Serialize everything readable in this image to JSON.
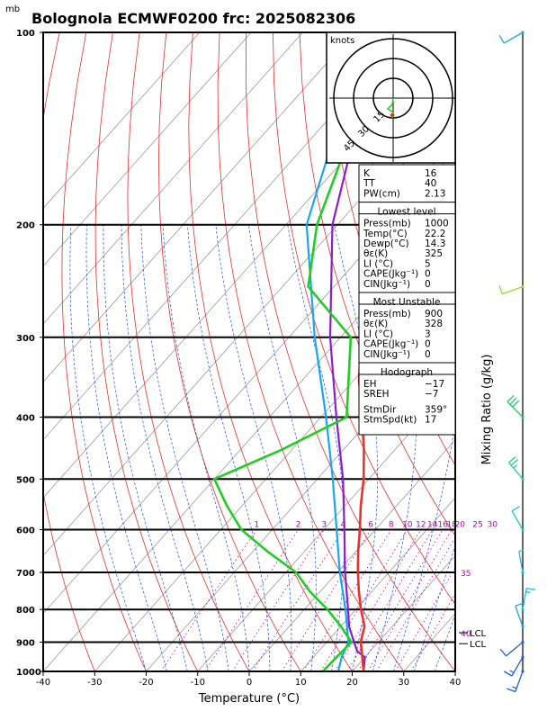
{
  "header": {
    "unit_top": "mb",
    "title": "Bolognola ECMWF0200  frc: 2025082306"
  },
  "hodograph": {
    "unit_label": "knots",
    "ring_labels": [
      "15",
      "30",
      "45"
    ]
  },
  "right_axis_label": "Mixing Ratio  (g/kg)",
  "lcl_labels": [
    "LCL",
    "LCL"
  ],
  "mixing_ratio_labels": [
    "1",
    "2",
    "3",
    "4",
    "6",
    "8",
    "10",
    "12",
    "14",
    "16",
    "18",
    "20",
    "25",
    "30",
    "35",
    "40"
  ],
  "indices": {
    "top": [
      {
        "label": "K",
        "value": "16"
      },
      {
        "label": "TT",
        "value": "40"
      },
      {
        "label": "PW(cm)",
        "value": "2.13"
      }
    ],
    "lowest": {
      "title": "Lowest level",
      "rows": [
        {
          "label": "Press(mb)",
          "value": "1000"
        },
        {
          "label": "Temp(°C)",
          "value": "22.2"
        },
        {
          "label": "Dewp(°C)",
          "value": "14.3"
        },
        {
          "label": "θε(K)",
          "value": "325"
        },
        {
          "label": "LI (°C)",
          "value": "5"
        },
        {
          "label": "CAPE(Jkg⁻¹)",
          "value": "0"
        },
        {
          "label": "CIN(Jkg⁻¹)",
          "value": "0"
        }
      ]
    },
    "most_unstable": {
      "title": "Most Unstable",
      "rows": [
        {
          "label": "Press(mb)",
          "value": "900"
        },
        {
          "label": "θε(K)",
          "value": "328"
        },
        {
          "label": "LI (°C)",
          "value": "3"
        },
        {
          "label": "CAPE(Jkg⁻¹)",
          "value": "0"
        },
        {
          "label": "CIN(Jkg⁻¹)",
          "value": "0"
        }
      ]
    },
    "hodo": {
      "title": "Hodograph",
      "rows": [
        {
          "label": "EH",
          "value": "−17"
        },
        {
          "label": "SREH",
          "value": "−7"
        },
        {
          "label": "StmDir",
          "value": "359°"
        },
        {
          "label": "StmSpd(kt)",
          "value": "17"
        }
      ]
    }
  },
  "colors": {
    "temperature": "#e8322c",
    "dewpoint": "#22cc22",
    "parcel": "#8a1ec8",
    "wetbulb": "#1aa6ee",
    "isotherm": "#9a9a9a",
    "dry_adiabat": "#e03030",
    "moist_adiabat": "#2255dd",
    "mixing_ratio": "#b000b0"
  },
  "chart_data": {
    "type": "line",
    "title": "Bolognola ECMWF0200  frc: 2025082306",
    "xlabel": "Temperature (°C)",
    "ylabel": "mb",
    "xlim": [
      -40,
      40
    ],
    "ylim": [
      1000,
      100
    ],
    "y_scale": "log",
    "x_ticks": [
      -40,
      -30,
      -20,
      -10,
      0,
      10,
      20,
      30,
      40
    ],
    "y_ticks": [
      100,
      200,
      300,
      400,
      500,
      600,
      700,
      800,
      900,
      1000
    ],
    "series": [
      {
        "key": "temperature",
        "points": [
          [
            1000,
            22.2
          ],
          [
            950,
            19.5
          ],
          [
            900,
            16.6
          ],
          [
            850,
            14.6
          ],
          [
            800,
            11
          ],
          [
            750,
            7.5
          ],
          [
            700,
            4
          ],
          [
            650,
            0.5
          ],
          [
            600,
            -3
          ],
          [
            550,
            -7
          ],
          [
            500,
            -11
          ],
          [
            450,
            -16
          ],
          [
            400,
            -22
          ],
          [
            350,
            -29
          ],
          [
            300,
            -36
          ],
          [
            250,
            -45
          ],
          [
            200,
            -46
          ],
          [
            150,
            -38
          ],
          [
            100,
            -32
          ]
        ]
      },
      {
        "key": "dewpoint",
        "points": [
          [
            1000,
            14.3
          ],
          [
            950,
            14.5
          ],
          [
            900,
            14.8
          ],
          [
            850,
            10
          ],
          [
            800,
            4.5
          ],
          [
            750,
            -2
          ],
          [
            700,
            -8
          ],
          [
            650,
            -17
          ],
          [
            600,
            -26
          ],
          [
            550,
            -33
          ],
          [
            500,
            -40
          ],
          [
            450,
            -32
          ],
          [
            400,
            -25
          ],
          [
            300,
            -38
          ],
          [
            250,
            -55
          ],
          [
            200,
            -64
          ],
          [
            150,
            -72
          ],
          [
            100,
            -80
          ]
        ]
      },
      {
        "key": "parcel",
        "points": [
          [
            1000,
            22.2
          ],
          [
            950,
            20
          ],
          [
            930,
            17.5
          ],
          [
            900,
            15.3
          ],
          [
            850,
            11.6
          ],
          [
            800,
            8.5
          ],
          [
            700,
            1.5
          ],
          [
            600,
            -6
          ],
          [
            500,
            -15
          ],
          [
            400,
            -27
          ],
          [
            300,
            -42
          ],
          [
            200,
            -61
          ],
          [
            150,
            -71
          ],
          [
            100,
            -83
          ]
        ]
      },
      {
        "key": "wetbulb",
        "points": [
          [
            1000,
            17.3
          ],
          [
            950,
            15.5
          ],
          [
            900,
            14.2
          ],
          [
            850,
            11.2
          ],
          [
            800,
            8
          ],
          [
            700,
            0.5
          ],
          [
            600,
            -7.5
          ],
          [
            500,
            -17
          ],
          [
            400,
            -29
          ],
          [
            300,
            -45
          ],
          [
            200,
            -66
          ],
          [
            150,
            -75
          ],
          [
            100,
            -87
          ]
        ]
      }
    ],
    "winds": [
      {
        "pressure": 1000,
        "direction": 200,
        "speed_kt": 15
      },
      {
        "pressure": 950,
        "direction": 210,
        "speed_kt": 15
      },
      {
        "pressure": 900,
        "direction": 230,
        "speed_kt": 10
      },
      {
        "pressure": 850,
        "direction": 340,
        "speed_kt": 10
      },
      {
        "pressure": 800,
        "direction": 10,
        "speed_kt": 15
      },
      {
        "pressure": 700,
        "direction": 350,
        "speed_kt": 5
      },
      {
        "pressure": 600,
        "direction": 330,
        "speed_kt": 10
      },
      {
        "pressure": 500,
        "direction": 320,
        "speed_kt": 25
      },
      {
        "pressure": 400,
        "direction": 315,
        "speed_kt": 30
      },
      {
        "pressure": 250,
        "direction": 250,
        "speed_kt": 10
      },
      {
        "pressure": 100,
        "direction": 240,
        "speed_kt": 10
      }
    ]
  }
}
